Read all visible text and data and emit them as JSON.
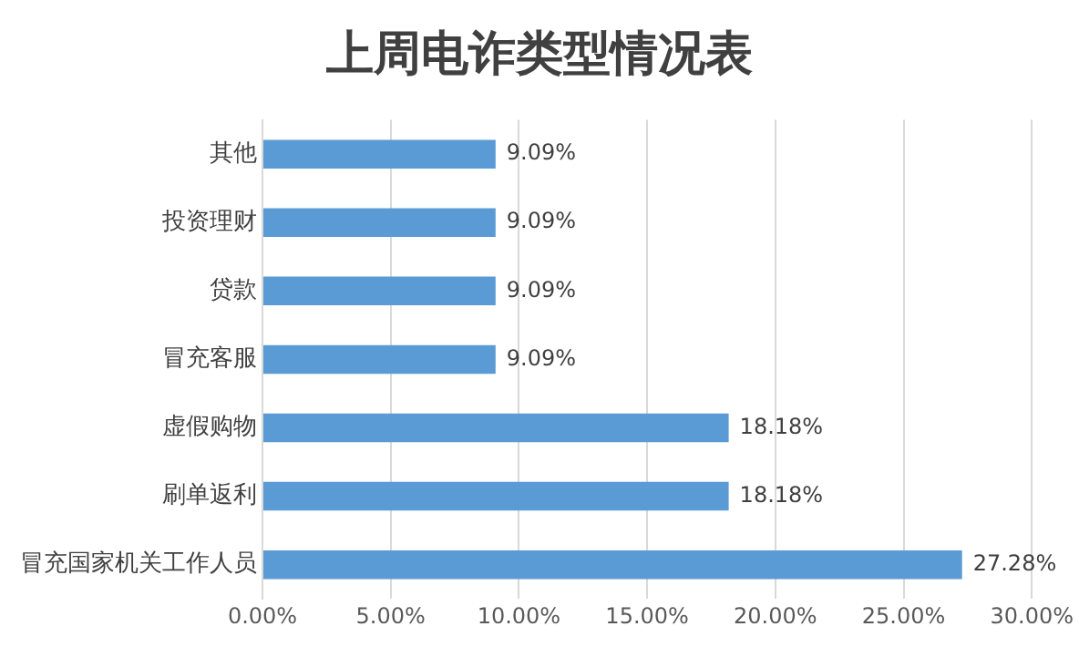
{
  "chart_data": {
    "type": "bar",
    "orientation": "horizontal",
    "title": "上周电诈类型情况表",
    "categories": [
      "其他",
      "投资理财",
      "贷款",
      "冒充客服",
      "虚假购物",
      "刷单返利",
      "冒充国家机关工作人员"
    ],
    "values": [
      9.09,
      9.09,
      9.09,
      9.09,
      18.18,
      18.18,
      27.28
    ],
    "value_labels": [
      "9.09%",
      "9.09%",
      "9.09%",
      "9.09%",
      "18.18%",
      "18.18%",
      "27.28%"
    ],
    "color": "#5b9bd5",
    "xlim": [
      0,
      30
    ],
    "xticks": [
      {
        "value": 0,
        "label": "0.00%"
      },
      {
        "value": 5,
        "label": "5.00%"
      },
      {
        "value": 10,
        "label": "10.00%"
      },
      {
        "value": 15,
        "label": "15.00%"
      },
      {
        "value": 20,
        "label": "20.00%"
      },
      {
        "value": 25,
        "label": "25.00%"
      },
      {
        "value": 30,
        "label": "30.00%"
      }
    ],
    "grid": "x",
    "legend": false
  }
}
